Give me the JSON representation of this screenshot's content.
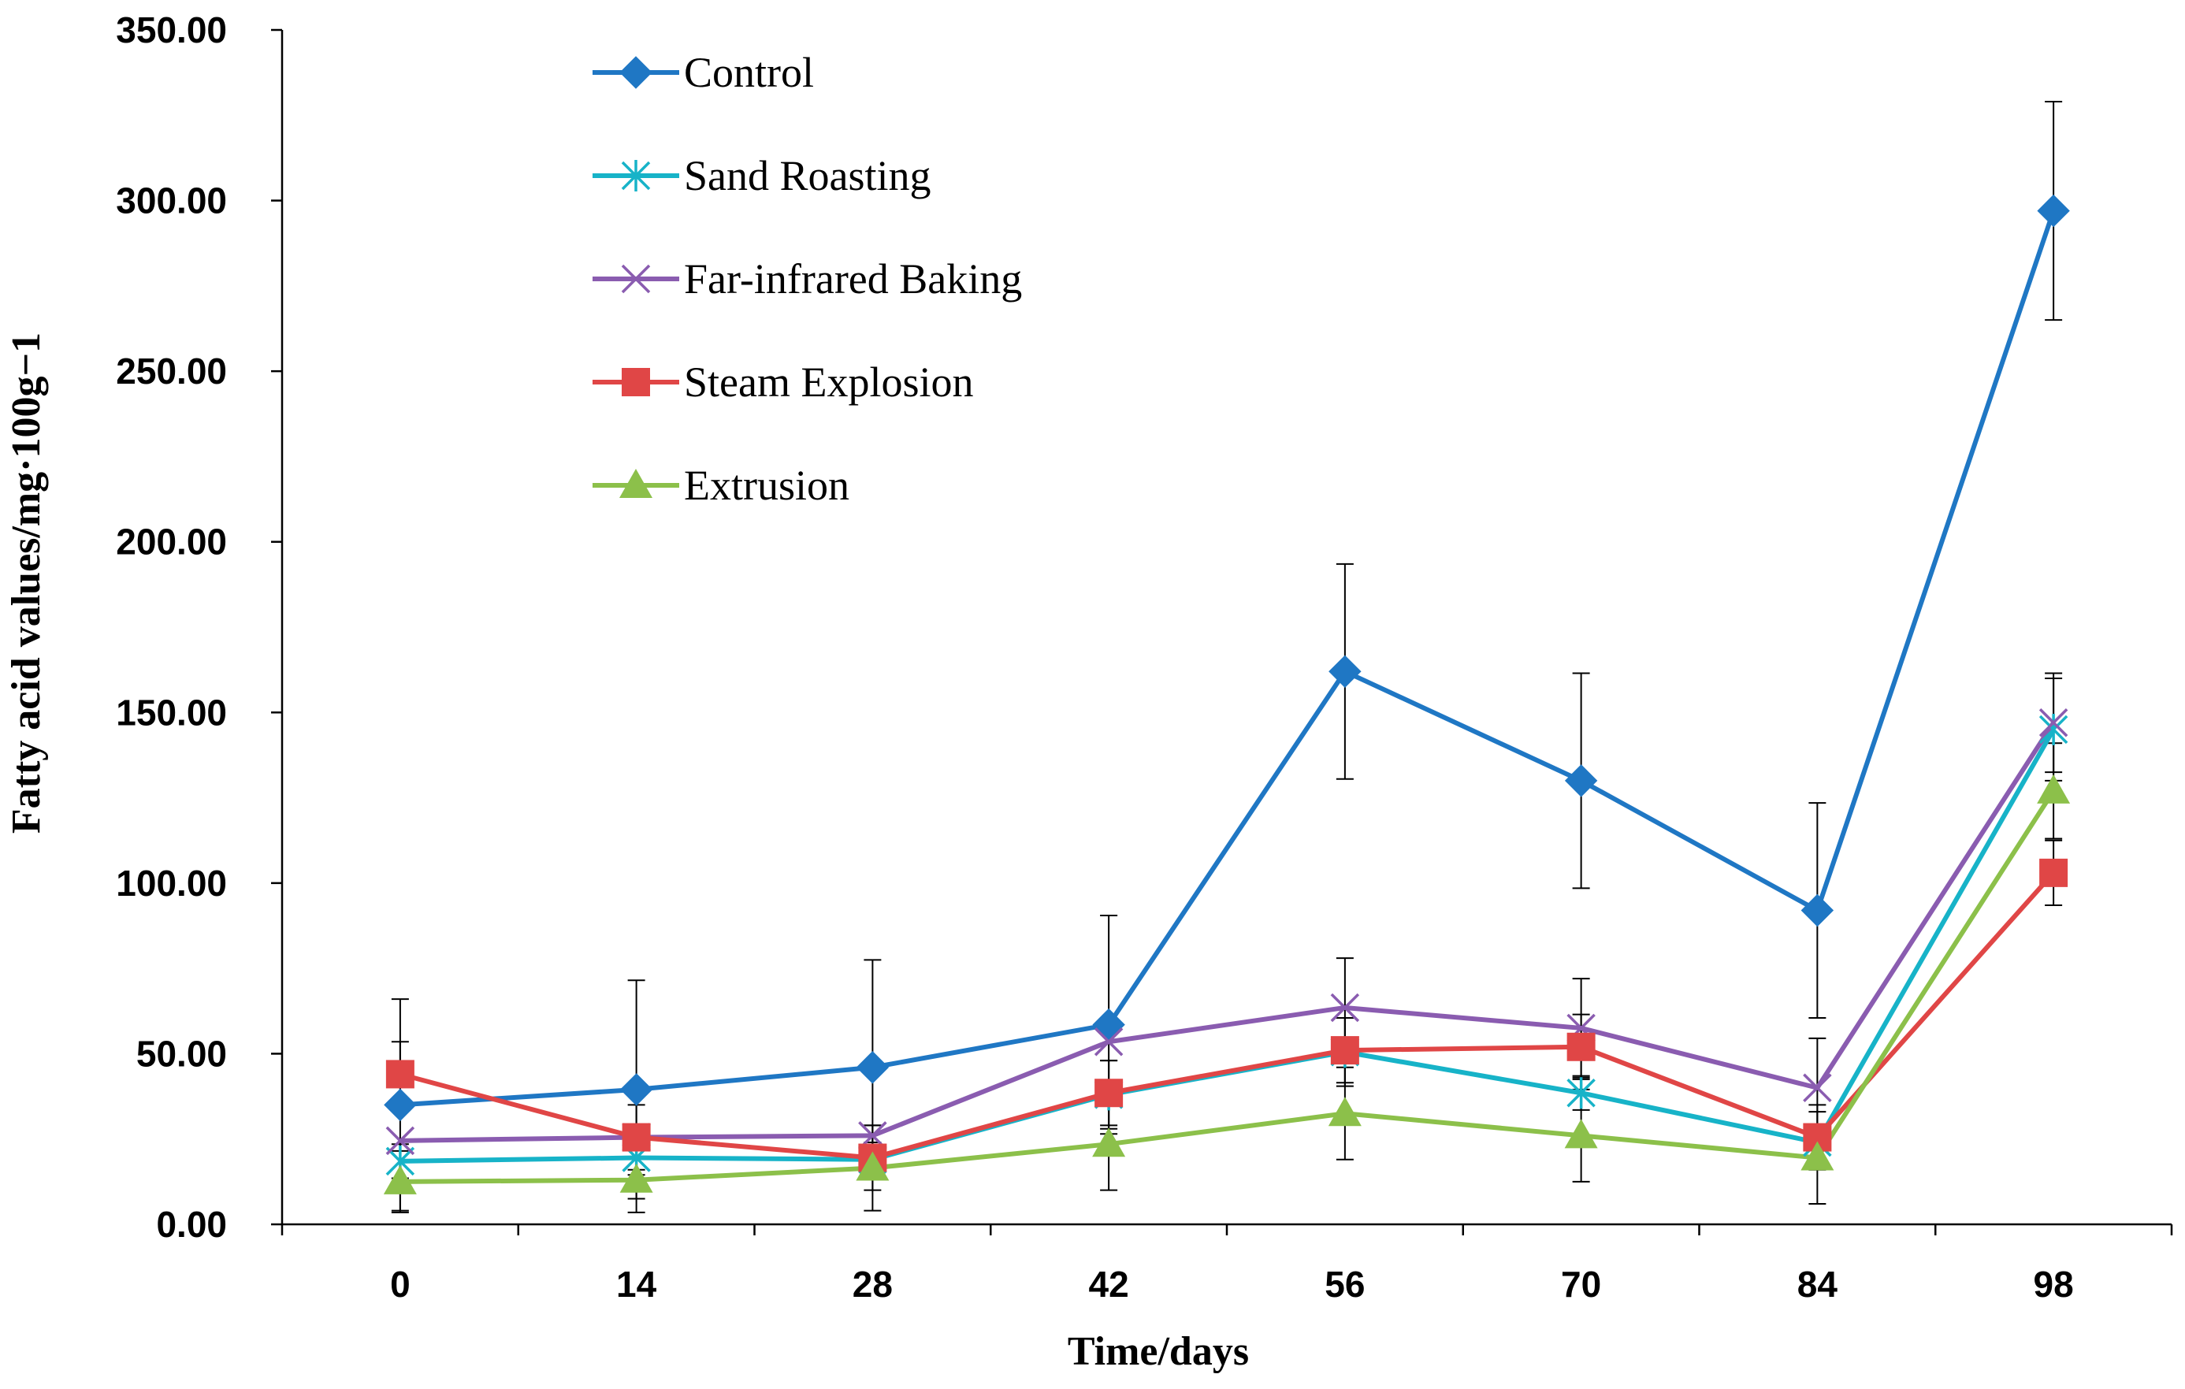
{
  "chart_data": {
    "type": "line",
    "title": "",
    "xlabel": "Time/days",
    "ylabel": "Fatty acid values/mg·100g−1",
    "categories": [
      "0",
      "14",
      "28",
      "42",
      "56",
      "70",
      "84",
      "98"
    ],
    "ylim": [
      0,
      350
    ],
    "yticks": [
      "0.00",
      "50.00",
      "100.00",
      "150.00",
      "200.00",
      "250.00",
      "300.00",
      "350.00"
    ],
    "legend_position": "top-left",
    "series": [
      {
        "name": "Control",
        "color": "#1f77c4",
        "marker": "diamond",
        "values": [
          35,
          39.5,
          46,
          58.5,
          162,
          130,
          92,
          297
        ],
        "errors": [
          31,
          32,
          31.5,
          32,
          31.5,
          31.5,
          31.5,
          32
        ]
      },
      {
        "name": "Sand Roasting",
        "color": "#17b3c8",
        "marker": "asterisk",
        "values": [
          18.5,
          19.5,
          19,
          38,
          50.5,
          38.5,
          24,
          145
        ],
        "errors": [
          5,
          5,
          5,
          10,
          10,
          5,
          5,
          15
        ]
      },
      {
        "name": "Far-infrared Baking",
        "color": "#8a5cb0",
        "marker": "x",
        "values": [
          24.5,
          25.5,
          26,
          53.5,
          63.5,
          57.5,
          40,
          147
        ],
        "errors": [
          0,
          0,
          0,
          0,
          14.5,
          14.5,
          14.5,
          14.5
        ]
      },
      {
        "name": "Steam Explosion",
        "color": "#e04646",
        "marker": "square",
        "values": [
          44,
          25.5,
          19.5,
          38.5,
          51,
          52,
          25.5,
          103
        ],
        "errors": [
          9.5,
          9.5,
          9.5,
          9.5,
          9.5,
          9.5,
          9.5,
          9.5
        ]
      },
      {
        "name": "Extrusion",
        "color": "#8cc04a",
        "marker": "triangle",
        "values": [
          12.5,
          13,
          16.5,
          23.5,
          32.5,
          26,
          19.5,
          127
        ],
        "errors": [
          9,
          9.5,
          12.5,
          13.5,
          13.5,
          13.5,
          13.5,
          14
        ]
      }
    ]
  }
}
